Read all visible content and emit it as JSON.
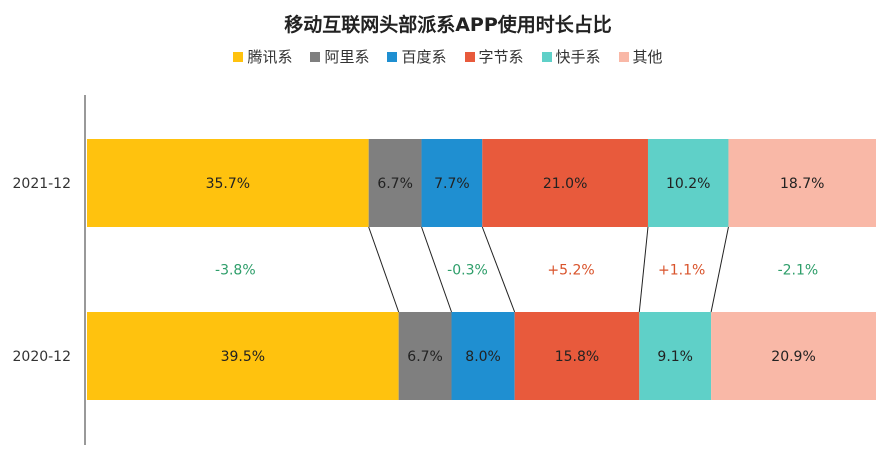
{
  "chart_data": {
    "type": "bar",
    "orientation": "horizontal",
    "stacked": "100%",
    "title": "移动互联网头部派系APP使用时长占比",
    "categories": [
      "2021-12",
      "2020-12"
    ],
    "series": [
      {
        "name": "腾讯系",
        "color": "#FFC20E",
        "values": [
          35.7,
          39.5
        ],
        "labels": [
          "35.7%",
          "39.5%"
        ]
      },
      {
        "name": "阿里系",
        "color": "#7F7F7F",
        "values": [
          6.7,
          6.7
        ],
        "labels": [
          "6.7%",
          "6.7%"
        ]
      },
      {
        "name": "百度系",
        "color": "#1F8FD1",
        "values": [
          7.7,
          8.0
        ],
        "labels": [
          "7.7%",
          "8.0%"
        ]
      },
      {
        "name": "字节系",
        "color": "#E85A3C",
        "values": [
          21.0,
          15.8
        ],
        "labels": [
          "21.0%",
          "15.8%"
        ]
      },
      {
        "name": "快手系",
        "color": "#5FD0C8",
        "values": [
          10.2,
          9.1
        ],
        "labels": [
          "10.2%",
          "9.1%"
        ]
      },
      {
        "name": "其他",
        "color": "#F9B8A7",
        "values": [
          18.7,
          20.9
        ],
        "labels": [
          "18.7%",
          "20.9%"
        ]
      }
    ],
    "changes": [
      {
        "series": "腾讯系",
        "label": "-3.8%",
        "color": "#2E9E6A"
      },
      {
        "series": "百度系",
        "label": "-0.3%",
        "color": "#2E9E6A"
      },
      {
        "series": "字节系",
        "label": "+5.2%",
        "color": "#D9532B"
      },
      {
        "series": "快手系",
        "label": "+1.1%",
        "color": "#D9532B"
      },
      {
        "series": "其他",
        "label": "-2.1%",
        "color": "#2E9E6A"
      }
    ],
    "legend_position": "top",
    "grid": false
  }
}
